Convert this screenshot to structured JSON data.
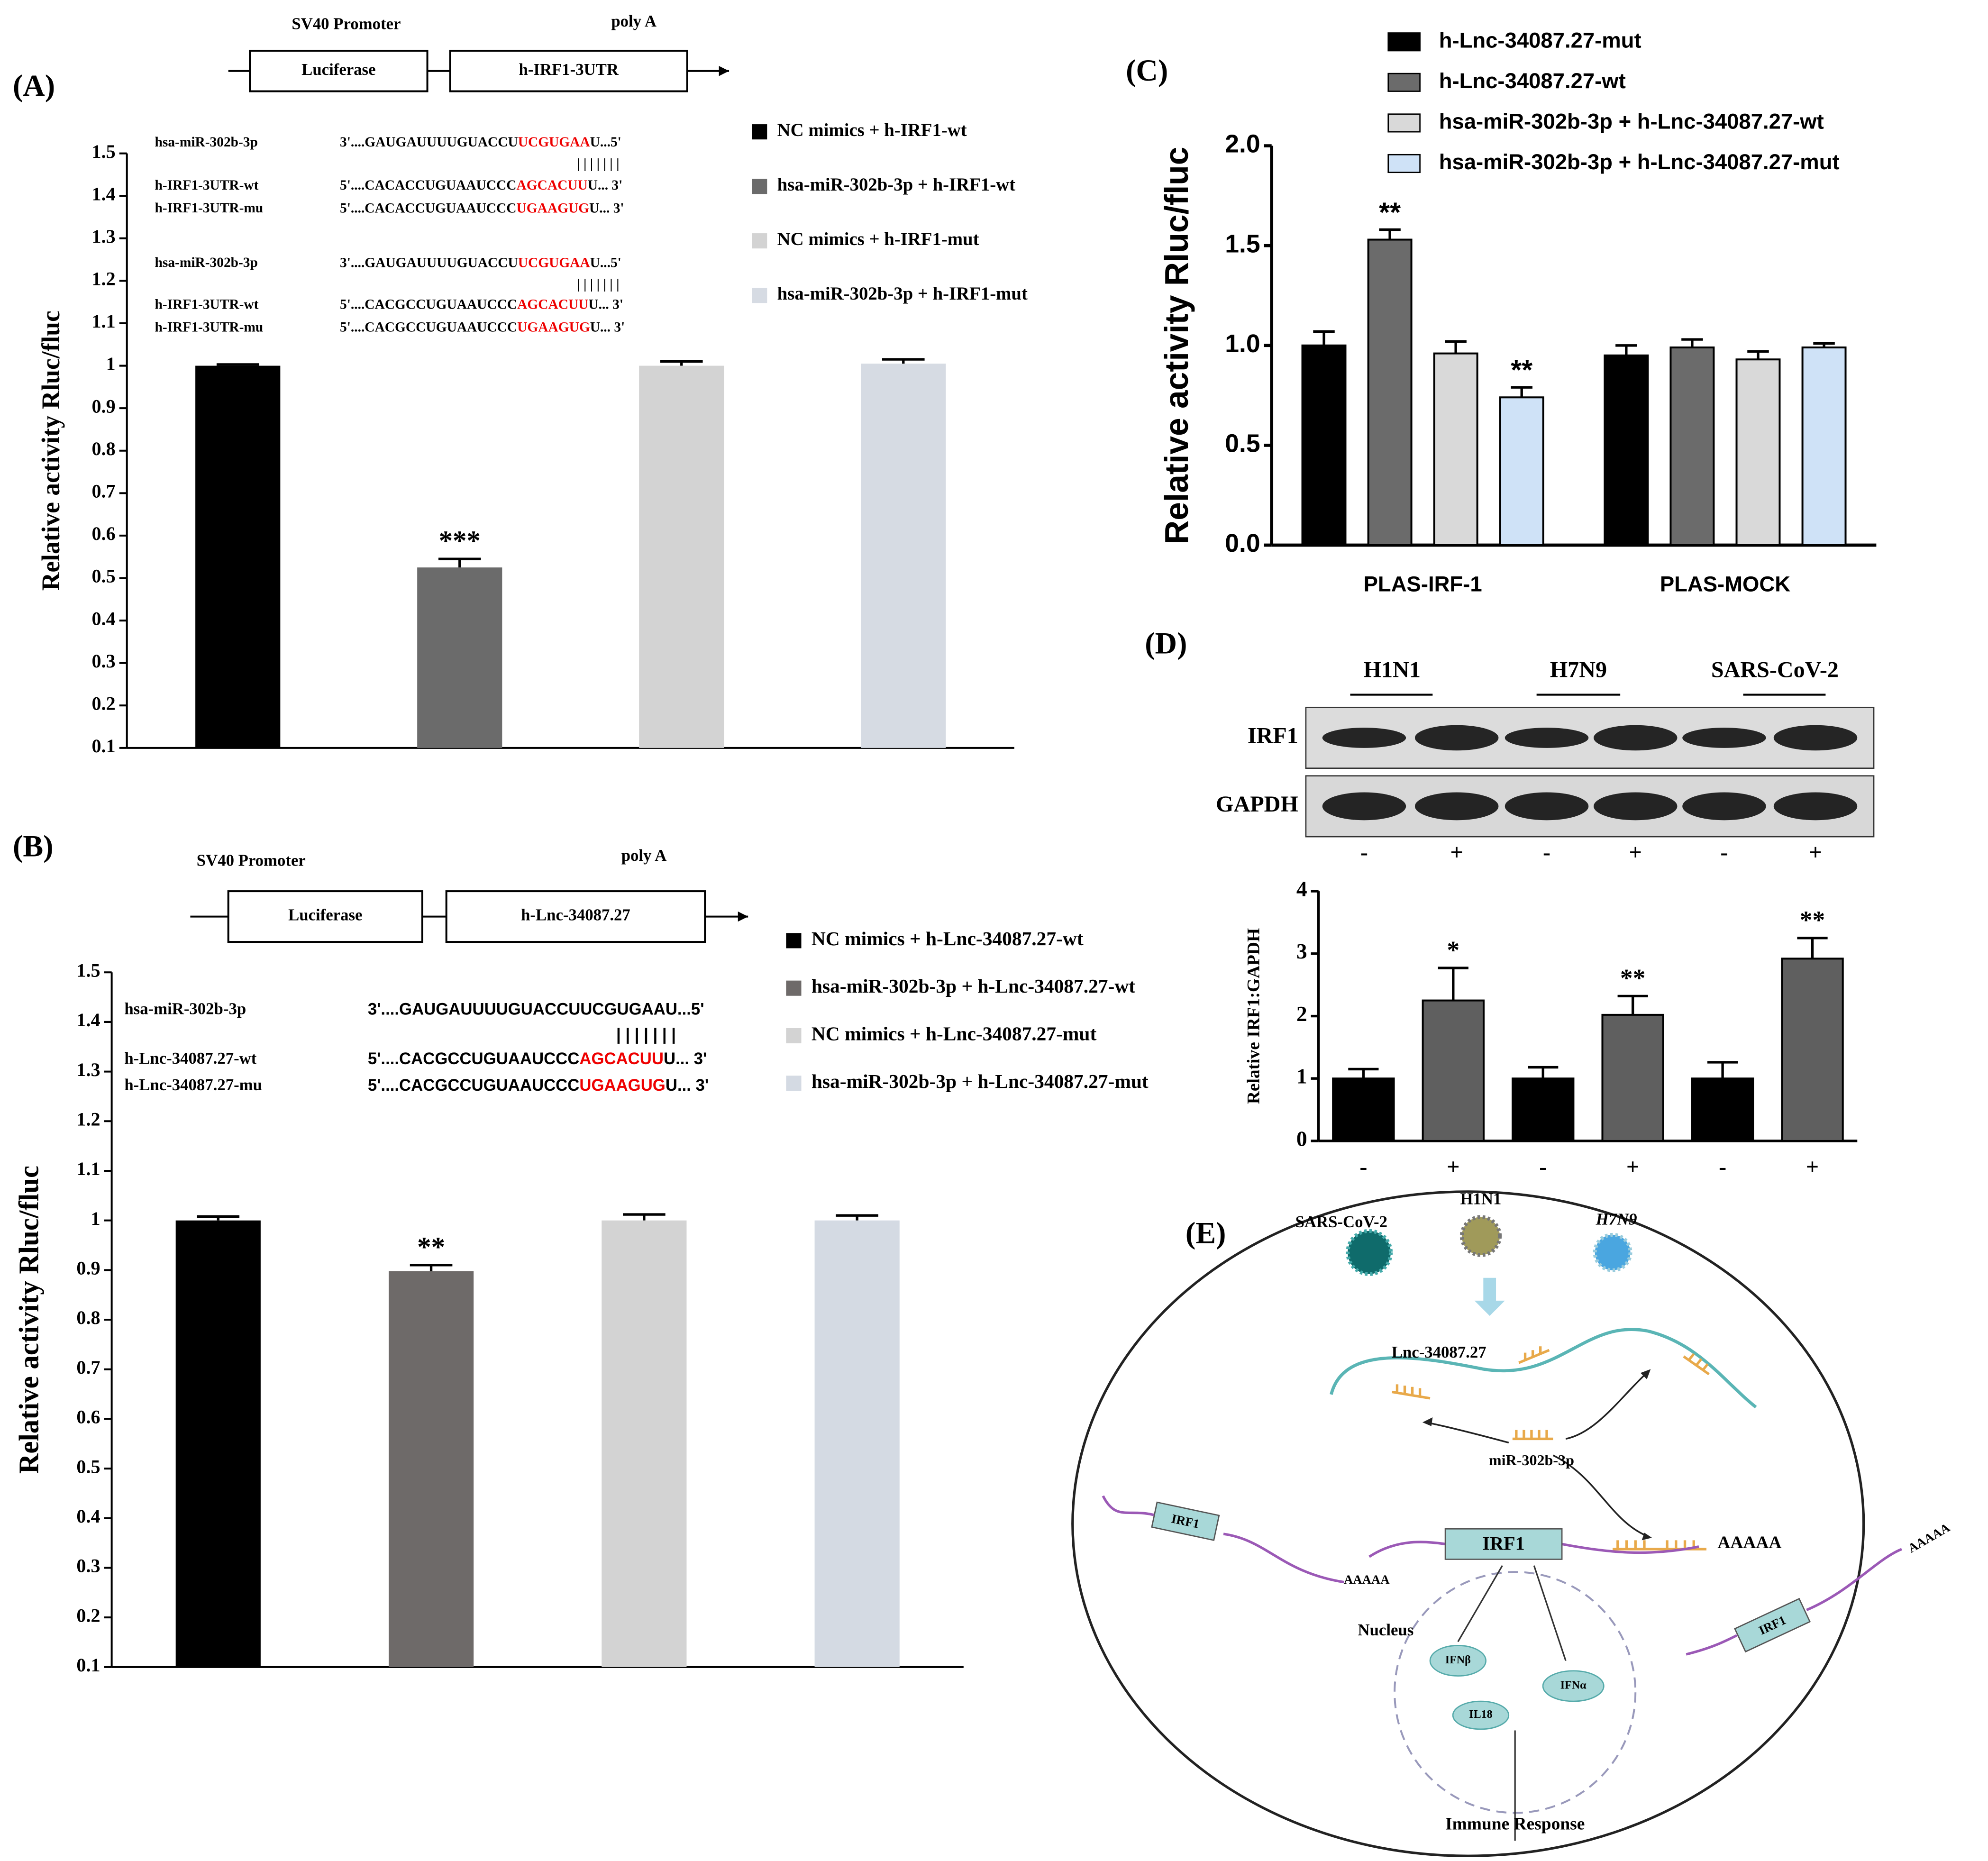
{
  "chart_data": [
    {
      "type": "bar",
      "panel_label": "(A)",
      "construct": {
        "promoter": "SV40 Promoter",
        "poly": "poly A",
        "gene": "Luciferase",
        "insert": "h-IRF1-3UTR"
      },
      "alignments": [
        {
          "label": "hsa-miR-302b-3p",
          "seq": [
            "3'....GAUGAUUUUGUACCU",
            "UCGUGAA",
            "U...5'"
          ]
        },
        {
          "label": null,
          "seq": [
            "| | | | | | |",
            null,
            null
          ]
        },
        {
          "label": "h-IRF1-3UTR-wt",
          "seq": [
            "5'....CACACCUGUAAUCCC",
            "AGCACUU",
            "U... 3'"
          ]
        },
        {
          "label": "h-IRF1-3UTR-mu",
          "seq": [
            "5'....CACACCUGUAAUCCC",
            "UGAAGUG",
            "U... 3'"
          ]
        },
        {
          "label": "hsa-miR-302b-3p",
          "seq": [
            "3'....GAUGAUUUUGUACCU",
            "UCGUGAA",
            "U...5'"
          ]
        },
        {
          "label": null,
          "seq": [
            "| | | | | | |",
            null,
            null
          ]
        },
        {
          "label": "h-IRF1-3UTR-wt",
          "seq": [
            "5'....CACGCCUGUAAUCCC",
            "AGCACUU",
            "U... 3'"
          ]
        },
        {
          "label": "h-IRF1-3UTR-mu",
          "seq": [
            "5'....CACGCCUGUAAUCCC",
            "UGAAGUG",
            "U... 3'"
          ]
        }
      ],
      "ylabel": "Relative activity Rluc/fluc",
      "ylim": [
        0.1,
        1.5
      ],
      "yticks": [
        0.1,
        0.2,
        0.3,
        0.4,
        0.5,
        0.6,
        0.7,
        0.8,
        0.9,
        1,
        1.1,
        1.2,
        1.3,
        1.4,
        1.5
      ],
      "series": [
        {
          "name": "NC mimics + h-IRF1-wt",
          "color": "#000000",
          "values": [
            1.0
          ],
          "errors": [
            0.003
          ],
          "significance": [
            null
          ]
        },
        {
          "name": "hsa-miR-302b-3p + h-IRF1-wt",
          "color": "#6b6b6b",
          "values": [
            0.525
          ],
          "errors": [
            0.02
          ],
          "significance": [
            "***"
          ]
        },
        {
          "name": "NC mimics + h-IRF1-mut",
          "color": "#d3d3d3",
          "values": [
            1.0
          ],
          "errors": [
            0.01
          ],
          "significance": [
            null
          ]
        },
        {
          "name": "hsa-miR-302b-3p + h-IRF1-mut",
          "color": "#d6dbe3",
          "values": [
            1.005
          ],
          "errors": [
            0.01
          ],
          "significance": [
            null
          ]
        }
      ]
    },
    {
      "type": "bar",
      "panel_label": "(B)",
      "construct": {
        "promoter": "SV40 Promoter",
        "poly": "poly A",
        "gene": "Luciferase",
        "insert": "h-Lnc-34087.27"
      },
      "alignments": [
        {
          "label": "hsa-miR-302b-3p",
          "seq": [
            "3'....GAUGAUUUUGUACCUUCGUGAAU...5'",
            null,
            null
          ]
        },
        {
          "label": null,
          "seq": [
            "| | | | | | |",
            null,
            null
          ]
        },
        {
          "label": "h-Lnc-34087.27-wt",
          "seq": [
            "5'....CACGCCUGUAAUCCC",
            "AGCACUU",
            "U... 3'"
          ]
        },
        {
          "label": "h-Lnc-34087.27-mu",
          "seq": [
            "5'....CACGCCUGUAAUCCC",
            "UGAAGUG",
            "U... 3'"
          ]
        }
      ],
      "ylabel": "Relative activity Rluc/fluc",
      "ylim": [
        0.1,
        1.5
      ],
      "yticks": [
        0.1,
        0.2,
        0.3,
        0.4,
        0.5,
        0.6,
        0.7,
        0.8,
        0.9,
        1,
        1.1,
        1.2,
        1.3,
        1.4,
        1.5
      ],
      "series": [
        {
          "name": "NC mimics + h-Lnc-34087.27-wt",
          "color": "#000000",
          "values": [
            1.0
          ],
          "errors": [
            0.008
          ],
          "significance": [
            null
          ]
        },
        {
          "name": "hsa-miR-302b-3p + h-Lnc-34087.27-wt",
          "color": "#6e6a69",
          "values": [
            0.898
          ],
          "errors": [
            0.012
          ],
          "significance": [
            "**"
          ]
        },
        {
          "name": "NC mimics + h-Lnc-34087.27-mut",
          "color": "#d3d3d3",
          "values": [
            1.0
          ],
          "errors": [
            0.012
          ],
          "significance": [
            null
          ]
        },
        {
          "name": "hsa-miR-302b-3p + h-Lnc-34087.27-mut",
          "color": "#d4dae3",
          "values": [
            1.0
          ],
          "errors": [
            0.01
          ],
          "significance": [
            null
          ]
        }
      ]
    },
    {
      "type": "bar",
      "panel_label": "(C)",
      "ylabel": "Relative activity Rluc/fluc",
      "categories": [
        "PLAS-IRF-1",
        "PLAS-MOCK"
      ],
      "ylim": [
        0,
        2.0
      ],
      "yticks": [
        {
          "value": 0,
          "label": "0.0"
        },
        0.5,
        {
          "value": 1,
          "label": "1.0"
        },
        1.5,
        {
          "value": 2,
          "label": "2.0"
        }
      ],
      "series": [
        {
          "name": "h-Lnc-34087.27-mut",
          "color": "#000000",
          "values": [
            1.0,
            0.95
          ],
          "errors": [
            0.07,
            0.05
          ],
          "significance": [
            null,
            null
          ]
        },
        {
          "name": "h-Lnc-34087.27-wt",
          "color": "#6b6b6b",
          "values": [
            1.53,
            0.99
          ],
          "errors": [
            0.05,
            0.04
          ],
          "significance": [
            "**",
            null
          ]
        },
        {
          "name": "hsa-miR-302b-3p + h-Lnc-34087.27-wt",
          "color": "#d9d9d9",
          "values": [
            0.96,
            0.93
          ],
          "errors": [
            0.06,
            0.04
          ],
          "significance": [
            null,
            null
          ]
        },
        {
          "name": "hsa-miR-302b-3p + h-Lnc-34087.27-mut",
          "color": "#cfe2f7",
          "values": [
            0.74,
            0.99
          ],
          "errors": [
            0.05,
            0.02
          ],
          "significance": [
            "**",
            null
          ]
        }
      ]
    },
    {
      "type": "bar",
      "panel_label": "(D)",
      "blot": {
        "groups": [
          "H1N1",
          "H7N9",
          "SARS-CoV-2"
        ],
        "rows": [
          "IRF1",
          "GAPDH"
        ],
        "lanes": [
          "-",
          "+",
          "-",
          "+",
          "-",
          "+"
        ]
      },
      "ylabel": "Relative IRF1:GAPDH",
      "categories": [
        "-",
        "+",
        "-",
        "+",
        "-",
        "+"
      ],
      "values": [
        1,
        2.25,
        1,
        2.02,
        1,
        2.92
      ],
      "errors": [
        0.15,
        0.52,
        0.18,
        0.3,
        0.26,
        0.33
      ],
      "significance": [
        null,
        "*",
        null,
        "**",
        null,
        "**"
      ],
      "colors": [
        "#000000",
        "#5f5f5f",
        "#000000",
        "#5f5f5f",
        "#000000",
        "#5f5f5f"
      ],
      "ylim": [
        0,
        4
      ],
      "yticks": [
        0,
        1,
        2,
        3,
        4
      ]
    }
  ],
  "diagram": {
    "panel_label": "(E)",
    "viruses": [
      "SARS-CoV-2",
      "H1N1",
      "H7N9"
    ],
    "lnc": "Lnc-34087.27",
    "mirna": "miR-302b-3p",
    "mrna_labels": [
      "IRF1",
      "IRF1",
      "IRF1"
    ],
    "polya": [
      "AAAAA",
      "AAAAA",
      "AAAAA"
    ],
    "nucleus": "Nucleus",
    "cytokines": [
      "IFNβ",
      "IFNα",
      "IL18"
    ],
    "output": "Immune Response"
  }
}
